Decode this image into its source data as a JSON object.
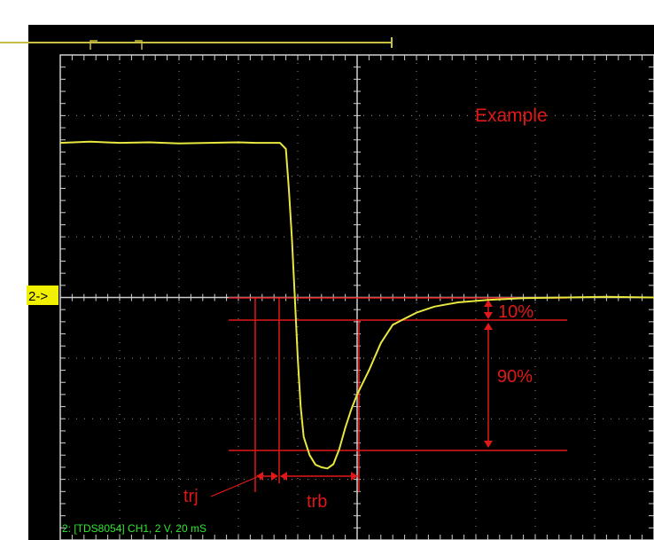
{
  "chart_data": {
    "type": "line",
    "title": "",
    "xlabel": "",
    "ylabel": "",
    "grid": true,
    "xlim": [
      0,
      10
    ],
    "ylim": [
      -4,
      4
    ],
    "x_units": "divisions",
    "y_units": "divisions",
    "series": [
      {
        "color": "#e8e840",
        "points": [
          [
            0.0,
            2.55
          ],
          [
            0.5,
            2.57
          ],
          [
            1.0,
            2.55
          ],
          [
            1.5,
            2.56
          ],
          [
            2.0,
            2.54
          ],
          [
            2.5,
            2.55
          ],
          [
            3.0,
            2.56
          ],
          [
            3.3,
            2.55
          ],
          [
            3.5,
            2.55
          ],
          [
            3.7,
            2.55
          ],
          [
            3.8,
            2.45
          ],
          [
            3.85,
            1.8
          ],
          [
            3.9,
            1.0
          ],
          [
            3.95,
            0.0
          ],
          [
            4.0,
            -1.0
          ],
          [
            4.05,
            -1.8
          ],
          [
            4.1,
            -2.3
          ],
          [
            4.2,
            -2.6
          ],
          [
            4.3,
            -2.76
          ],
          [
            4.4,
            -2.8
          ],
          [
            4.5,
            -2.82
          ],
          [
            4.6,
            -2.75
          ],
          [
            4.7,
            -2.5
          ],
          [
            4.8,
            -2.15
          ],
          [
            4.9,
            -1.85
          ],
          [
            5.0,
            -1.6
          ],
          [
            5.2,
            -1.2
          ],
          [
            5.4,
            -0.75
          ],
          [
            5.6,
            -0.45
          ],
          [
            5.8,
            -0.35
          ],
          [
            6.0,
            -0.25
          ],
          [
            6.3,
            -0.15
          ],
          [
            6.7,
            -0.08
          ],
          [
            7.2,
            -0.04
          ],
          [
            7.8,
            -0.01
          ],
          [
            8.5,
            0.0
          ],
          [
            9.2,
            0.01
          ],
          [
            10.0,
            0.0
          ]
        ]
      }
    ],
    "channel_marker": "2->",
    "annotations": {
      "example_label": "Example",
      "percent_low": "10%",
      "percent_high": "90%",
      "trj_label": "trj",
      "trb_label": "trb"
    },
    "status_bar": "2: [TDS8054] CH1, 2 V, 20 mS",
    "colors": {
      "screen": "#000000",
      "grid": "#cfcfcf",
      "trace": "#e8e840",
      "annotation": "#e01818",
      "status": "#2ee82e",
      "marker_bg": "#f0f000",
      "top_bar": "#c8c040"
    }
  }
}
